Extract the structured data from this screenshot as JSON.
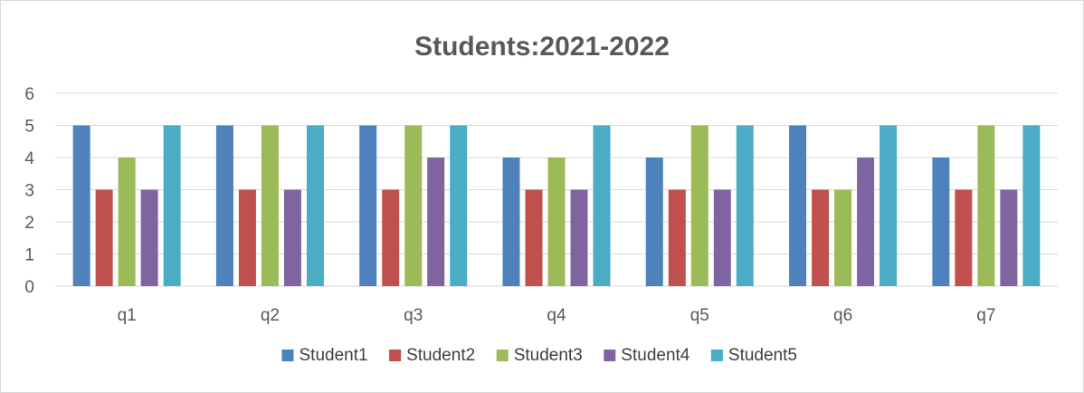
{
  "chart_data": {
    "type": "bar",
    "title": "Students:2021-2022",
    "xlabel": "",
    "ylabel": "",
    "categories": [
      "q1",
      "q2",
      "q3",
      "q4",
      "q5",
      "q6",
      "q7"
    ],
    "series": [
      {
        "name": "Student1",
        "color": "#4F81BD",
        "values": [
          5,
          5,
          5,
          4,
          4,
          5,
          4
        ]
      },
      {
        "name": "Student2",
        "color": "#C0504D",
        "values": [
          3,
          3,
          3,
          3,
          3,
          3,
          3
        ]
      },
      {
        "name": "Student3",
        "color": "#9BBB59",
        "values": [
          4,
          5,
          5,
          4,
          5,
          3,
          5
        ]
      },
      {
        "name": "Student4",
        "color": "#8064A2",
        "values": [
          3,
          3,
          4,
          3,
          3,
          4,
          3
        ]
      },
      {
        "name": "Student5",
        "color": "#4BACC6",
        "values": [
          5,
          5,
          5,
          5,
          5,
          5,
          5
        ]
      }
    ],
    "ylim": [
      0,
      6
    ],
    "y_ticks": [
      "0",
      "1",
      "2",
      "3",
      "4",
      "5",
      "6"
    ],
    "grid": true,
    "legend_position": "bottom"
  }
}
